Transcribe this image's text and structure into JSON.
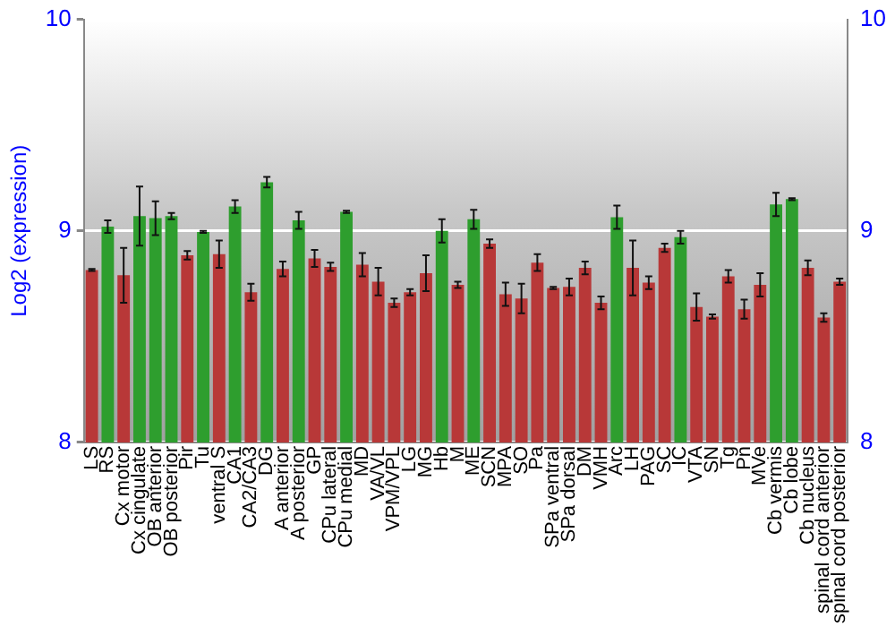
{
  "chart_data": {
    "type": "bar",
    "ylabel": "Log2 (expression)",
    "categories": [
      "LS",
      "RS",
      "Cx motor",
      "Cx cingulate",
      "OB anterior",
      "OB posterior",
      "Pir",
      "Tu",
      "ventral S",
      "CA1",
      "CA2/CA3",
      "DG",
      "A anterior",
      "A posterior",
      "GP",
      "CPu lateral",
      "CPu medial",
      "MD",
      "VA/VL",
      "VPM/VPL",
      "LG",
      "MG",
      "Hb",
      "M",
      "ME",
      "SCN",
      "MPA",
      "SO",
      "Pa",
      "SPa ventral",
      "SPa dorsal",
      "DM",
      "VMH",
      "Arc",
      "LH",
      "PAG",
      "SC",
      "IC",
      "VTA",
      "SN",
      "Tg",
      "Pn",
      "MVe",
      "Cb vermis",
      "Cb lobe",
      "Cb nucleus",
      "spinal cord anterior",
      "spinal cord posterior"
    ],
    "values": [
      8.815,
      9.02,
      8.79,
      9.07,
      9.06,
      9.07,
      8.885,
      8.995,
      8.89,
      9.115,
      8.71,
      9.23,
      8.82,
      9.05,
      8.87,
      8.83,
      9.09,
      8.84,
      8.76,
      8.66,
      8.71,
      8.8,
      9.0,
      8.745,
      9.055,
      8.94,
      8.7,
      8.68,
      8.85,
      8.73,
      8.735,
      8.825,
      8.66,
      9.065,
      8.825,
      8.755,
      8.92,
      8.97,
      8.64,
      8.595,
      8.785,
      8.63,
      8.745,
      9.125,
      9.15,
      8.825,
      8.59,
      8.76
    ],
    "errors": [
      0.005,
      0.03,
      0.13,
      0.14,
      0.08,
      0.015,
      0.02,
      0.005,
      0.065,
      0.03,
      0.04,
      0.025,
      0.035,
      0.04,
      0.04,
      0.02,
      0.005,
      0.055,
      0.065,
      0.02,
      0.015,
      0.085,
      0.055,
      0.015,
      0.045,
      0.02,
      0.055,
      0.07,
      0.04,
      0.005,
      0.04,
      0.03,
      0.03,
      0.055,
      0.13,
      0.03,
      0.02,
      0.03,
      0.065,
      0.01,
      0.03,
      0.045,
      0.055,
      0.055,
      0.005,
      0.035,
      0.02,
      0.015
    ],
    "colors": [
      "#b83838",
      "#2e9e2e",
      "#b83838",
      "#2e9e2e",
      "#2e9e2e",
      "#2e9e2e",
      "#b83838",
      "#2e9e2e",
      "#b83838",
      "#2e9e2e",
      "#b83838",
      "#2e9e2e",
      "#b83838",
      "#2e9e2e",
      "#b83838",
      "#b83838",
      "#2e9e2e",
      "#b83838",
      "#b83838",
      "#b83838",
      "#b83838",
      "#b83838",
      "#2e9e2e",
      "#b83838",
      "#2e9e2e",
      "#b83838",
      "#b83838",
      "#b83838",
      "#b83838",
      "#b83838",
      "#b83838",
      "#b83838",
      "#b83838",
      "#2e9e2e",
      "#b83838",
      "#b83838",
      "#b83838",
      "#2e9e2e",
      "#b83838",
      "#b83838",
      "#b83838",
      "#b83838",
      "#b83838",
      "#2e9e2e",
      "#2e9e2e",
      "#b83838",
      "#b83838",
      "#b83838"
    ],
    "ylim": [
      8,
      10
    ],
    "yticks": [
      8,
      9,
      10
    ],
    "y2lim": [
      8,
      10
    ],
    "y2ticks": [
      8,
      9,
      10
    ],
    "grid": "y",
    "legend": false
  }
}
